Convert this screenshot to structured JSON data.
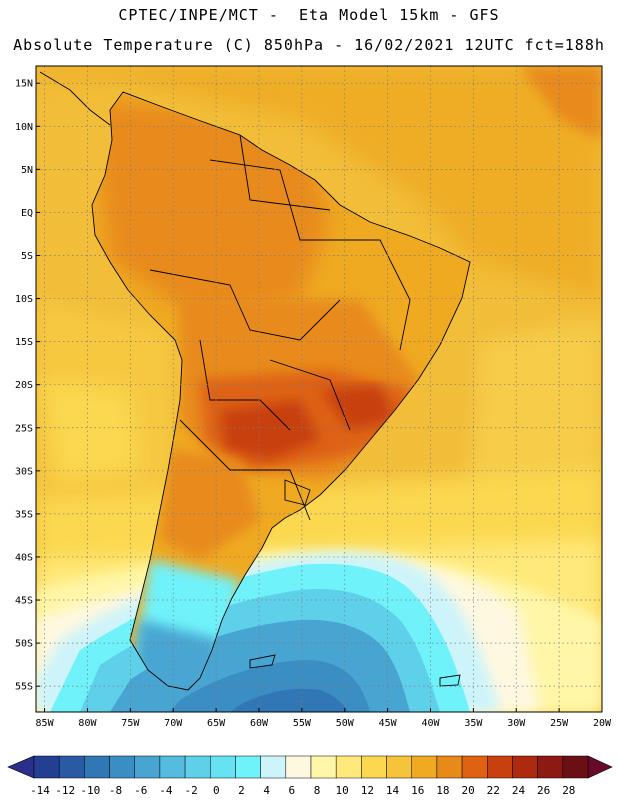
{
  "header": {
    "line1": "CPTEC/INPE/MCT -  Eta Model 15km - GFS",
    "line2": "Absolute Temperature (C) 850hPa - 16/02/2021 12UTC fct=188h"
  },
  "map": {
    "lon_range": [
      -86,
      -20
    ],
    "lat_range": [
      -58,
      17
    ],
    "lat_ticks": [
      {
        "value": 15,
        "label": "15N"
      },
      {
        "value": 10,
        "label": "10N"
      },
      {
        "value": 5,
        "label": "5N"
      },
      {
        "value": 0,
        "label": "EQ"
      },
      {
        "value": -5,
        "label": "5S"
      },
      {
        "value": -10,
        "label": "10S"
      },
      {
        "value": -15,
        "label": "15S"
      },
      {
        "value": -20,
        "label": "20S"
      },
      {
        "value": -25,
        "label": "25S"
      },
      {
        "value": -30,
        "label": "30S"
      },
      {
        "value": -35,
        "label": "35S"
      },
      {
        "value": -40,
        "label": "40S"
      },
      {
        "value": -45,
        "label": "45S"
      },
      {
        "value": -50,
        "label": "50S"
      },
      {
        "value": -55,
        "label": "55S"
      }
    ],
    "lon_ticks": [
      {
        "value": -85,
        "label": "85W"
      },
      {
        "value": -80,
        "label": "80W"
      },
      {
        "value": -75,
        "label": "75W"
      },
      {
        "value": -70,
        "label": "70W"
      },
      {
        "value": -65,
        "label": "65W"
      },
      {
        "value": -60,
        "label": "60W"
      },
      {
        "value": -55,
        "label": "55W"
      },
      {
        "value": -50,
        "label": "50W"
      },
      {
        "value": -45,
        "label": "45W"
      },
      {
        "value": -40,
        "label": "40W"
      },
      {
        "value": -35,
        "label": "35W"
      },
      {
        "value": -30,
        "label": "30W"
      },
      {
        "value": -25,
        "label": "25W"
      },
      {
        "value": -20,
        "label": "20W"
      }
    ],
    "gridlines": true
  },
  "colorbar": {
    "labels": [
      "-14",
      "-12",
      "-10",
      "-8",
      "-6",
      "-4",
      "-2",
      "0",
      "2",
      "4",
      "6",
      "8",
      "10",
      "12",
      "14",
      "16",
      "18",
      "20",
      "22",
      "24",
      "26",
      "28"
    ],
    "under_color": "#2a2f8c",
    "over_color": "#6a0a2a",
    "colors": [
      "#223f92",
      "#2a5aa4",
      "#3177b6",
      "#3b8ec4",
      "#48a5d2",
      "#55bbdf",
      "#5fd0ea",
      "#66e2f2",
      "#70f2fa",
      "#ccf4fa",
      "#fff8e0",
      "#fff6a8",
      "#ffe97a",
      "#fbd850",
      "#f6c43a",
      "#efaa22",
      "#e88a1a",
      "#de6212",
      "#c8400f",
      "#ad2a0f",
      "#8c1a12",
      "#6a0f14"
    ]
  }
}
